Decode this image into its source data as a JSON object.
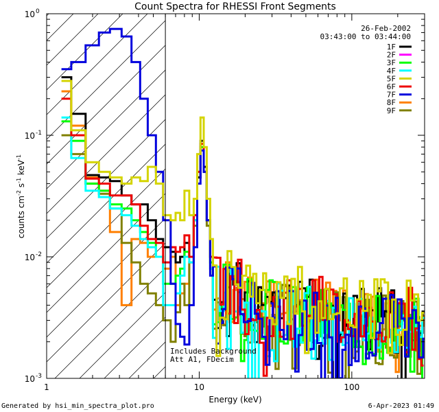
{
  "chart_data": {
    "type": "line",
    "title": "Count Spectra for RHESSI Front Segments",
    "xlabel": "Energy (keV)",
    "ylabel_main": "counts cm",
    "ylabel_exp1": "-2",
    "ylabel_mid": " s",
    "ylabel_exp2": "-1",
    "ylabel_end": " keV",
    "ylabel_exp3": "-1",
    "x_scale": "log",
    "y_scale": "log",
    "xlim": [
      1,
      300
    ],
    "ylim": [
      0.001,
      1.0
    ],
    "x_ticks": [
      {
        "value": 1,
        "label": "1"
      },
      {
        "value": 10,
        "label": "10"
      },
      {
        "value": 100,
        "label": "100"
      }
    ],
    "y_ticks": [
      {
        "value": 1,
        "base": "10",
        "exp": "0"
      },
      {
        "value": 0.1,
        "base": "10",
        "exp": "-1"
      },
      {
        "value": 0.01,
        "base": "10",
        "exp": "-2"
      },
      {
        "value": 0.001,
        "base": "10",
        "exp": "-3"
      }
    ],
    "attenuator_energy": 6.0,
    "date": "26-Feb-2002",
    "time_range": "03:43:00 to 03:44:00",
    "note_line1": "Includes Background",
    "note_line2": "Att A1, FDecim",
    "series": [
      {
        "name": "1F",
        "color": "#000000",
        "lo": [
          [
            1.25,
            0.3
          ],
          [
            1.45,
            0.15
          ],
          [
            1.8,
            0.047
          ],
          [
            2.2,
            0.045
          ],
          [
            2.6,
            0.042
          ],
          [
            3.1,
            0.032
          ],
          [
            3.6,
            0.027
          ],
          [
            4.1,
            0.027
          ],
          [
            4.6,
            0.02
          ],
          [
            5.2,
            0.014
          ],
          [
            5.8,
            0.012
          ]
        ],
        "peak": [
          [
            6.5,
            0.011
          ],
          [
            7,
            0.009
          ],
          [
            7.5,
            0.01
          ],
          [
            8,
            0.013
          ],
          [
            8.6,
            0.01
          ],
          [
            9.2,
            0.022
          ],
          [
            9.7,
            0.045
          ],
          [
            10.2,
            0.09
          ],
          [
            10.7,
            0.055
          ],
          [
            11.2,
            0.02
          ],
          [
            11.8,
            0.01
          ]
        ],
        "tail": 0.0042,
        "seed": 1
      },
      {
        "name": "2F",
        "color": "#ff00ff",
        "lo": [],
        "peak": [],
        "tail": 0,
        "seed": 2
      },
      {
        "name": "3F",
        "color": "#00ff00",
        "lo": [
          [
            1.25,
            0.13
          ],
          [
            1.45,
            0.09
          ],
          [
            1.8,
            0.04
          ],
          [
            2.2,
            0.035
          ],
          [
            2.6,
            0.027
          ],
          [
            3.1,
            0.025
          ],
          [
            3.6,
            0.02
          ],
          [
            4.1,
            0.016
          ],
          [
            4.6,
            0.013
          ],
          [
            5.2,
            0.01
          ],
          [
            5.8,
            0.006
          ]
        ],
        "peak": [
          [
            6.5,
            0.006
          ],
          [
            7,
            0.007
          ],
          [
            7.5,
            0.008
          ],
          [
            8,
            0.011
          ],
          [
            8.6,
            0.01
          ],
          [
            9.2,
            0.02
          ],
          [
            9.7,
            0.05
          ],
          [
            10.2,
            0.08
          ],
          [
            10.7,
            0.05
          ],
          [
            11.2,
            0.02
          ],
          [
            11.8,
            0.009
          ]
        ],
        "tail": 0.004,
        "seed": 3
      },
      {
        "name": "4F",
        "color": "#00ffff",
        "lo": [
          [
            1.25,
            0.14
          ],
          [
            1.45,
            0.065
          ],
          [
            1.8,
            0.035
          ],
          [
            2.2,
            0.031
          ],
          [
            2.6,
            0.025
          ],
          [
            3.1,
            0.022
          ],
          [
            3.6,
            0.018
          ],
          [
            4.1,
            0.014
          ],
          [
            4.6,
            0.012
          ],
          [
            5.2,
            0.01
          ],
          [
            5.8,
            0.004
          ]
        ],
        "peak": [
          [
            6.5,
            0.004
          ],
          [
            7,
            0.005
          ],
          [
            7.5,
            0.007
          ],
          [
            8,
            0.01
          ],
          [
            8.6,
            0.009
          ],
          [
            9.2,
            0.02
          ],
          [
            9.7,
            0.05
          ],
          [
            10.2,
            0.085
          ],
          [
            10.7,
            0.05
          ],
          [
            11.2,
            0.02
          ],
          [
            11.8,
            0.008
          ]
        ],
        "tail": 0.0038,
        "seed": 4
      },
      {
        "name": "5F",
        "color": "#d4d400",
        "lo": [
          [
            1.25,
            0.28
          ],
          [
            1.45,
            0.11
          ],
          [
            1.8,
            0.06
          ],
          [
            2.2,
            0.05
          ],
          [
            2.6,
            0.045
          ],
          [
            3.1,
            0.04
          ],
          [
            3.6,
            0.045
          ],
          [
            4.1,
            0.042
          ],
          [
            4.6,
            0.055
          ],
          [
            5.2,
            0.04
          ],
          [
            5.8,
            0.022
          ]
        ],
        "peak": [
          [
            6.5,
            0.02
          ],
          [
            7,
            0.023
          ],
          [
            7.5,
            0.02
          ],
          [
            8,
            0.035
          ],
          [
            8.6,
            0.022
          ],
          [
            9.2,
            0.03
          ],
          [
            9.7,
            0.07
          ],
          [
            10.2,
            0.14
          ],
          [
            10.7,
            0.08
          ],
          [
            11.2,
            0.03
          ],
          [
            11.8,
            0.014
          ]
        ],
        "tail": 0.0052,
        "seed": 5
      },
      {
        "name": "6F",
        "color": "#ee0000",
        "lo": [
          [
            1.25,
            0.2
          ],
          [
            1.45,
            0.1
          ],
          [
            1.8,
            0.044
          ],
          [
            2.2,
            0.04
          ],
          [
            2.6,
            0.032
          ],
          [
            3.1,
            0.032
          ],
          [
            3.6,
            0.027
          ],
          [
            4.1,
            0.018
          ],
          [
            4.6,
            0.014
          ],
          [
            5.2,
            0.013
          ],
          [
            5.8,
            0.009
          ]
        ],
        "peak": [
          [
            6.5,
            0.012
          ],
          [
            7,
            0.011
          ],
          [
            7.5,
            0.012
          ],
          [
            8,
            0.015
          ],
          [
            8.6,
            0.01
          ],
          [
            9.2,
            0.022
          ],
          [
            9.7,
            0.05
          ],
          [
            10.2,
            0.085
          ],
          [
            10.7,
            0.05
          ],
          [
            11.2,
            0.02
          ],
          [
            11.8,
            0.01
          ]
        ],
        "tail": 0.0045,
        "seed": 6
      },
      {
        "name": "7F",
        "color": "#0000dd",
        "lo": [
          [
            1.25,
            0.35
          ],
          [
            1.45,
            0.4
          ],
          [
            1.8,
            0.55
          ],
          [
            2.2,
            0.7
          ],
          [
            2.6,
            0.75
          ],
          [
            3.1,
            0.65
          ],
          [
            3.6,
            0.4
          ],
          [
            4.1,
            0.2
          ],
          [
            4.6,
            0.1
          ],
          [
            5.2,
            0.05
          ],
          [
            5.8,
            0.02
          ]
        ],
        "peak": [
          [
            6.5,
            0.006
          ],
          [
            7,
            0.0028
          ],
          [
            7.5,
            0.0022
          ],
          [
            8,
            0.0019
          ],
          [
            8.6,
            0.004
          ],
          [
            9.2,
            0.012
          ],
          [
            9.7,
            0.04
          ],
          [
            10.2,
            0.075
          ],
          [
            10.7,
            0.05
          ],
          [
            11.2,
            0.02
          ],
          [
            11.8,
            0.007
          ]
        ],
        "tail": 0.0038,
        "seed": 7
      },
      {
        "name": "8F",
        "color": "#ff7f00",
        "lo": [
          [
            1.25,
            0.23
          ],
          [
            1.45,
            0.12
          ],
          [
            1.8,
            0.045
          ],
          [
            2.2,
            0.035
          ],
          [
            2.6,
            0.016
          ],
          [
            3.1,
            0.004
          ],
          [
            3.6,
            0.014
          ],
          [
            4.1,
            0.013
          ],
          [
            4.6,
            0.01
          ],
          [
            5.2,
            0.01
          ],
          [
            5.8,
            0.008
          ]
        ],
        "peak": [
          [
            6.5,
            0.01
          ],
          [
            7,
            0.004
          ],
          [
            7.5,
            0.005
          ],
          [
            8,
            0.006
          ],
          [
            8.6,
            0.009
          ],
          [
            9.2,
            0.02
          ],
          [
            9.7,
            0.045
          ],
          [
            10.2,
            0.08
          ],
          [
            10.7,
            0.05
          ],
          [
            11.2,
            0.02
          ],
          [
            11.8,
            0.009
          ]
        ],
        "tail": 0.0042,
        "seed": 8
      },
      {
        "name": "9F",
        "color": "#808000",
        "lo": [
          [
            1.25,
            0.1
          ],
          [
            1.45,
            0.07
          ],
          [
            1.8,
            0.04
          ],
          [
            2.2,
            0.033
          ],
          [
            2.6,
            0.025
          ],
          [
            3.1,
            0.013
          ],
          [
            3.6,
            0.009
          ],
          [
            4.1,
            0.006
          ],
          [
            4.6,
            0.005
          ],
          [
            5.2,
            0.004
          ],
          [
            5.8,
            0.003
          ]
        ],
        "peak": [
          [
            6.5,
            0.002
          ],
          [
            7,
            0.0035
          ],
          [
            7.5,
            0.006
          ],
          [
            8,
            0.004
          ],
          [
            8.6,
            0.009
          ],
          [
            9.2,
            0.018
          ],
          [
            9.7,
            0.045
          ],
          [
            10.2,
            0.08
          ],
          [
            10.7,
            0.05
          ],
          [
            11.2,
            0.018
          ],
          [
            11.8,
            0.008
          ]
        ],
        "tail": 0.0036,
        "seed": 9
      }
    ]
  },
  "footer": {
    "generated_by": "Generated by hsi_min_spectra_plot.pro",
    "timestamp": "6-Apr-2023 01:49"
  }
}
